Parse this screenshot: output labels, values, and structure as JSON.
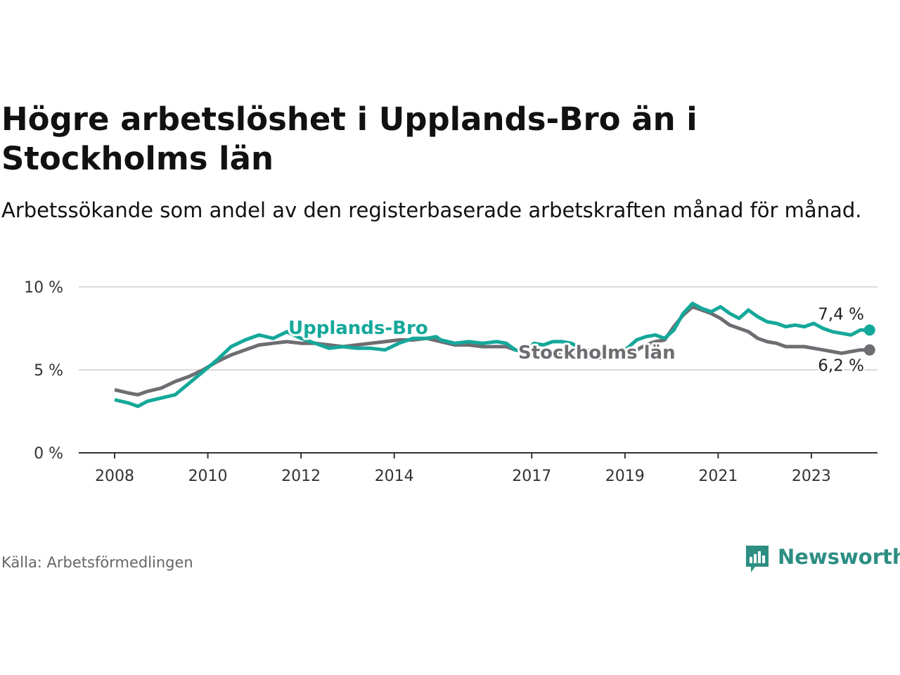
{
  "title": "Högre arbetslöshet i Upplands-Bro än i Stockholms län",
  "subtitle": "Arbetssökande som andel av den registerbaserade arbetskraften månad för månad.",
  "source": "Källa: Arbetsförmedlingen",
  "brand": "Newsworthy",
  "colors": {
    "upplands": "#14a89a",
    "stockholm": "#6d6d72",
    "brand": "#2d8e82",
    "grid": "#d9d9d9",
    "axis": "#333333"
  },
  "chart_data": {
    "type": "line",
    "title": "Högre arbetslöshet i Upplands-Bro än i Stockholms län",
    "xlabel": "",
    "ylabel": "",
    "x_range": [
      2008,
      2024.7
    ],
    "ylim": [
      0,
      10
    ],
    "y_ticks": [
      0,
      5,
      10
    ],
    "y_tick_labels": [
      "0 %",
      "5 %",
      "10 %"
    ],
    "x_ticks": [
      2008,
      2010,
      2012,
      2014,
      2017,
      2019,
      2021,
      2023
    ],
    "x_tick_labels": [
      "2008",
      "2010",
      "2012",
      "2014",
      "2017",
      "2019",
      "2021",
      "2023"
    ],
    "grid": true,
    "series": [
      {
        "name": "Upplands-Bro",
        "label": "Upplands-Bro",
        "end_label": "7,4 %",
        "color": "#14a89a",
        "points": [
          [
            2008.0,
            3.2
          ],
          [
            2008.3,
            3.0
          ],
          [
            2008.5,
            2.8
          ],
          [
            2008.7,
            3.1
          ],
          [
            2009.0,
            3.3
          ],
          [
            2009.3,
            3.5
          ],
          [
            2009.6,
            4.2
          ],
          [
            2009.9,
            4.9
          ],
          [
            2010.2,
            5.6
          ],
          [
            2010.5,
            6.4
          ],
          [
            2010.8,
            6.8
          ],
          [
            2011.1,
            7.1
          ],
          [
            2011.4,
            6.9
          ],
          [
            2011.7,
            7.3
          ],
          [
            2012.0,
            6.9
          ],
          [
            2012.3,
            6.6
          ],
          [
            2012.6,
            6.3
          ],
          [
            2012.9,
            6.4
          ],
          [
            2013.2,
            6.3
          ],
          [
            2013.5,
            6.3
          ],
          [
            2013.8,
            6.2
          ],
          [
            2014.1,
            6.6
          ],
          [
            2014.4,
            6.9
          ],
          [
            2014.7,
            6.9
          ],
          [
            2014.9,
            7.0
          ],
          [
            2015.0,
            6.8
          ],
          [
            2015.3,
            6.6
          ],
          [
            2015.6,
            6.7
          ],
          [
            2015.9,
            6.6
          ],
          [
            2016.2,
            6.7
          ],
          [
            2016.4,
            6.6
          ],
          [
            2016.6,
            6.2
          ],
          [
            2016.8,
            6.1
          ],
          [
            2017.0,
            6.6
          ],
          [
            2017.2,
            6.5
          ],
          [
            2017.4,
            6.7
          ],
          [
            2017.6,
            6.7
          ],
          [
            2017.8,
            6.6
          ],
          [
            2018.0,
            6.3
          ],
          [
            2018.3,
            6.1
          ],
          [
            2018.6,
            6.0
          ],
          [
            2018.9,
            6.2
          ],
          [
            2019.0,
            6.3
          ],
          [
            2019.2,
            6.8
          ],
          [
            2019.4,
            7.0
          ],
          [
            2019.6,
            7.1
          ],
          [
            2019.8,
            6.9
          ],
          [
            2020.0,
            7.4
          ],
          [
            2020.2,
            8.4
          ],
          [
            2020.4,
            9.0
          ],
          [
            2020.6,
            8.7
          ],
          [
            2020.8,
            8.5
          ],
          [
            2021.0,
            8.8
          ],
          [
            2021.2,
            8.4
          ],
          [
            2021.4,
            8.1
          ],
          [
            2021.6,
            8.6
          ],
          [
            2021.8,
            8.2
          ],
          [
            2022.0,
            7.9
          ],
          [
            2022.2,
            7.8
          ],
          [
            2022.4,
            7.6
          ],
          [
            2022.6,
            7.7
          ],
          [
            2022.8,
            7.6
          ],
          [
            2023.0,
            7.8
          ],
          [
            2023.2,
            7.5
          ],
          [
            2023.4,
            7.3
          ],
          [
            2023.6,
            7.2
          ],
          [
            2023.8,
            7.1
          ],
          [
            2024.0,
            7.4
          ],
          [
            2024.2,
            7.4
          ]
        ]
      },
      {
        "name": "Stockholms län",
        "label": "Stockholms län",
        "end_label": "6,2 %",
        "color": "#6d6d72",
        "points": [
          [
            2008.0,
            3.8
          ],
          [
            2008.3,
            3.6
          ],
          [
            2008.5,
            3.5
          ],
          [
            2008.7,
            3.7
          ],
          [
            2009.0,
            3.9
          ],
          [
            2009.3,
            4.3
          ],
          [
            2009.6,
            4.6
          ],
          [
            2009.9,
            5.0
          ],
          [
            2010.2,
            5.5
          ],
          [
            2010.5,
            5.9
          ],
          [
            2010.8,
            6.2
          ],
          [
            2011.1,
            6.5
          ],
          [
            2011.4,
            6.6
          ],
          [
            2011.7,
            6.7
          ],
          [
            2012.0,
            6.6
          ],
          [
            2012.3,
            6.6
          ],
          [
            2012.6,
            6.5
          ],
          [
            2012.9,
            6.4
          ],
          [
            2013.2,
            6.5
          ],
          [
            2013.5,
            6.6
          ],
          [
            2013.8,
            6.7
          ],
          [
            2014.1,
            6.8
          ],
          [
            2014.4,
            6.8
          ],
          [
            2014.7,
            6.9
          ],
          [
            2015.0,
            6.7
          ],
          [
            2015.3,
            6.5
          ],
          [
            2015.6,
            6.5
          ],
          [
            2015.9,
            6.4
          ],
          [
            2016.2,
            6.4
          ],
          [
            2016.4,
            6.4
          ],
          [
            2016.6,
            6.2
          ],
          [
            2016.8,
            6.1
          ],
          [
            2017.0,
            6.2
          ],
          [
            2017.2,
            6.2
          ],
          [
            2017.4,
            6.1
          ],
          [
            2017.6,
            6.0
          ],
          [
            2017.8,
            5.9
          ],
          [
            2018.0,
            5.8
          ],
          [
            2018.3,
            5.7
          ],
          [
            2018.6,
            5.7
          ],
          [
            2018.9,
            5.8
          ],
          [
            2019.0,
            6.0
          ],
          [
            2019.2,
            6.2
          ],
          [
            2019.4,
            6.5
          ],
          [
            2019.6,
            6.7
          ],
          [
            2019.8,
            6.8
          ],
          [
            2020.0,
            7.6
          ],
          [
            2020.2,
            8.3
          ],
          [
            2020.4,
            8.8
          ],
          [
            2020.6,
            8.6
          ],
          [
            2020.8,
            8.4
          ],
          [
            2021.0,
            8.1
          ],
          [
            2021.2,
            7.7
          ],
          [
            2021.4,
            7.5
          ],
          [
            2021.6,
            7.3
          ],
          [
            2021.8,
            6.9
          ],
          [
            2022.0,
            6.7
          ],
          [
            2022.2,
            6.6
          ],
          [
            2022.4,
            6.4
          ],
          [
            2022.6,
            6.4
          ],
          [
            2022.8,
            6.4
          ],
          [
            2023.0,
            6.3
          ],
          [
            2023.2,
            6.2
          ],
          [
            2023.4,
            6.1
          ],
          [
            2023.6,
            6.0
          ],
          [
            2023.8,
            6.1
          ],
          [
            2024.0,
            6.2
          ],
          [
            2024.2,
            6.2
          ]
        ]
      }
    ]
  }
}
